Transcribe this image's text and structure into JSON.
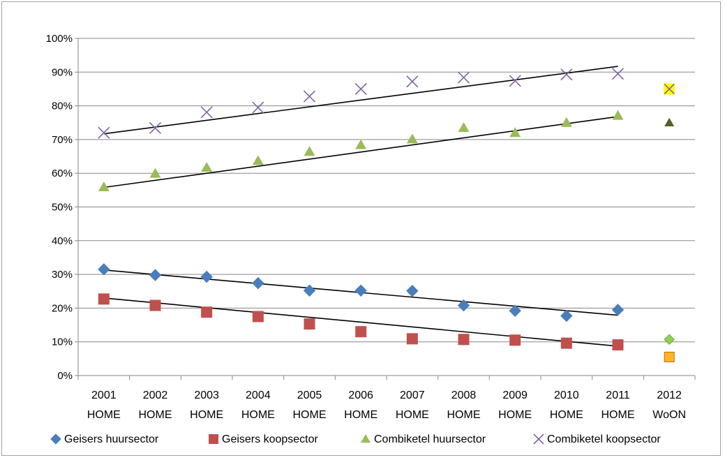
{
  "chart_data": {
    "type": "scatter",
    "categories": [
      [
        "2001",
        "HOME"
      ],
      [
        "2002",
        "HOME"
      ],
      [
        "2003",
        "HOME"
      ],
      [
        "2004",
        "HOME"
      ],
      [
        "2005",
        "HOME"
      ],
      [
        "2006",
        "HOME"
      ],
      [
        "2007",
        "HOME"
      ],
      [
        "2008",
        "HOME"
      ],
      [
        "2009",
        "HOME"
      ],
      [
        "2010",
        "HOME"
      ],
      [
        "2011",
        "HOME"
      ],
      [
        "2012",
        "WoON"
      ]
    ],
    "ylim": [
      0,
      100
    ],
    "yticks": [
      0,
      10,
      20,
      30,
      40,
      50,
      60,
      70,
      80,
      90,
      100
    ],
    "ytick_labels": [
      "0%",
      "10%",
      "20%",
      "30%",
      "40%",
      "50%",
      "60%",
      "70%",
      "80%",
      "90%",
      "100%"
    ],
    "grid": "horizontal",
    "legend_position": "bottom",
    "series": [
      {
        "name": "Geisers huursector",
        "marker": "diamond",
        "color": "#4a7ebb",
        "values": [
          31.5,
          29.8,
          29.3,
          27.4,
          25.2,
          25.2,
          25.1,
          20.8,
          19.2,
          17.7,
          19.5
        ],
        "highlight_2012": {
          "value": 10.7,
          "color": "#92d050"
        },
        "trendline": [
          31.3,
          17.9
        ]
      },
      {
        "name": "Geisers koopsector",
        "marker": "square",
        "color": "#c0504d",
        "values": [
          22.7,
          20.8,
          18.8,
          17.5,
          15.3,
          13.0,
          10.9,
          10.7,
          10.5,
          9.6,
          9.1
        ],
        "highlight_2012": {
          "value": 5.5,
          "color": "#ffb42a"
        },
        "trendline": [
          23.0,
          8.7
        ]
      },
      {
        "name": "Combiketel huursector",
        "marker": "triangle",
        "color": "#9bbb59",
        "values": [
          55.9,
          59.9,
          61.7,
          63.7,
          66.4,
          68.4,
          70.1,
          73.5,
          72.0,
          75.0,
          77.1
        ],
        "highlight_2012": {
          "value": 75.0,
          "color": "#4f6228"
        },
        "trendline": [
          55.8,
          76.8
        ]
      },
      {
        "name": "Combiketel koopsector",
        "marker": "x",
        "color": "#8064a2",
        "values": [
          72.0,
          73.4,
          78.1,
          79.5,
          82.8,
          85.0,
          87.2,
          88.4,
          87.4,
          89.3,
          89.5
        ],
        "highlight_2012": {
          "value": 85.0,
          "color": "#ffff00"
        },
        "trendline": [
          71.7,
          91.7
        ]
      }
    ]
  }
}
